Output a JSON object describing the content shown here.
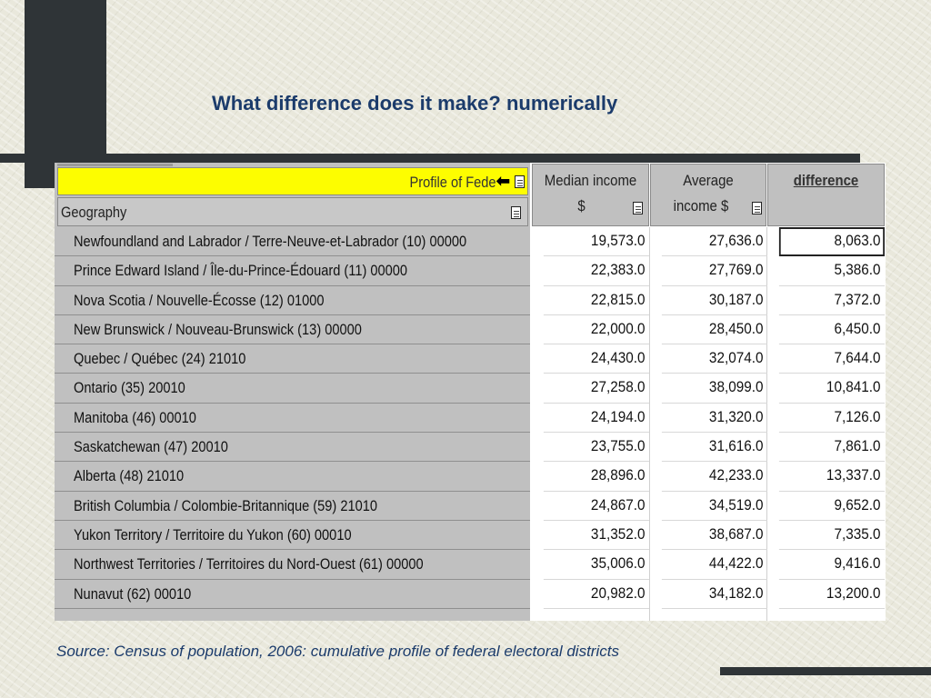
{
  "slide": {
    "title": "What difference does it make? numerically",
    "source": "Source: Census of population, 2006: cumulative profile of federal electoral districts"
  },
  "table": {
    "profile_label": "Profile of Fede",
    "geography_label": "Geography",
    "columns": {
      "median": [
        "Median income",
        "$"
      ],
      "average": [
        "Average",
        "income $"
      ],
      "difference": "difference"
    },
    "rows": [
      {
        "geo": "Newfoundland and Labrador / Terre-Neuve-et-Labrador (10)   00000",
        "median": "19,573.0",
        "average": "27,636.0",
        "difference": "8,063.0"
      },
      {
        "geo": "Prince Edward Island / Île-du-Prince-Édouard (11)   00000",
        "median": "22,383.0",
        "average": "27,769.0",
        "difference": "5,386.0"
      },
      {
        "geo": "Nova Scotia / Nouvelle-Écosse (12)   01000",
        "median": "22,815.0",
        "average": "30,187.0",
        "difference": "7,372.0"
      },
      {
        "geo": "New Brunswick / Nouveau-Brunswick (13)   00000",
        "median": "22,000.0",
        "average": "28,450.0",
        "difference": "6,450.0"
      },
      {
        "geo": "Quebec / Québec (24)   21010",
        "median": "24,430.0",
        "average": "32,074.0",
        "difference": "7,644.0"
      },
      {
        "geo": "Ontario (35)   20010",
        "median": "27,258.0",
        "average": "38,099.0",
        "difference": "10,841.0"
      },
      {
        "geo": "Manitoba (46)   00010",
        "median": "24,194.0",
        "average": "31,320.0",
        "difference": "7,126.0"
      },
      {
        "geo": "Saskatchewan (47)   20010",
        "median": "23,755.0",
        "average": "31,616.0",
        "difference": "7,861.0"
      },
      {
        "geo": "Alberta (48)   21010",
        "median": "28,896.0",
        "average": "42,233.0",
        "difference": "13,337.0"
      },
      {
        "geo": "British Columbia / Colombie-Britannique (59)   21010",
        "median": "24,867.0",
        "average": "34,519.0",
        "difference": "9,652.0"
      },
      {
        "geo": "Yukon Territory / Territoire du Yukon (60)   00010",
        "median": "31,352.0",
        "average": "38,687.0",
        "difference": "7,335.0"
      },
      {
        "geo": "Northwest Territories / Territoires du Nord-Ouest (61)   00000",
        "median": "35,006.0",
        "average": "44,422.0",
        "difference": "9,416.0"
      },
      {
        "geo": "Nunavut (62)   00010",
        "median": "20,982.0",
        "average": "34,182.0",
        "difference": "13,200.0"
      }
    ]
  },
  "colors": {
    "title": "#1b3b6b",
    "highlight": "#fdfd00",
    "panel": "#c0c0c0",
    "decoration": "#2f3437"
  },
  "icons": [
    "document-icon",
    "arrow-left-icon"
  ]
}
